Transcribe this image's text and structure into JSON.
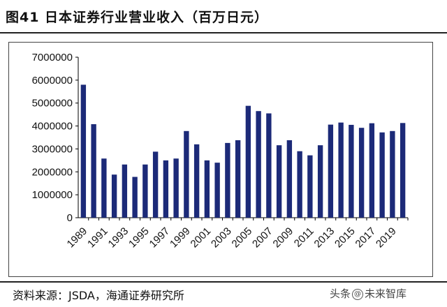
{
  "header": {
    "title": "图41 日本证券行业营业收入（百万日元）"
  },
  "footer": {
    "source": "资料来源：JSDA，海通证券研究所",
    "watermark_left": "头条",
    "watermark_icon": "@",
    "watermark_right": "未来智库"
  },
  "chart_data": {
    "type": "bar",
    "title": "",
    "xlabel": "",
    "ylabel": "",
    "ylim": [
      0,
      7000000
    ],
    "yticks": [
      "0",
      "1000000",
      "2000000",
      "3000000",
      "4000000",
      "5000000",
      "6000000",
      "7000000"
    ],
    "bar_color": "#1c2a78",
    "categories": [
      "1989",
      "1990",
      "1991",
      "1992",
      "1993",
      "1994",
      "1995",
      "1996",
      "1997",
      "1998",
      "1999",
      "2000",
      "2001",
      "2002",
      "2003",
      "2004",
      "2005",
      "2006",
      "2007",
      "2008",
      "2009",
      "2010",
      "2011",
      "2012",
      "2013",
      "2014",
      "2015",
      "2016",
      "2017",
      "2018",
      "2019",
      "2020"
    ],
    "xtick_labels": [
      "1989",
      "",
      "1991",
      "",
      "1993",
      "",
      "1995",
      "",
      "1997",
      "",
      "1999",
      "",
      "2001",
      "",
      "2003",
      "",
      "2005",
      "",
      "2007",
      "",
      "2009",
      "",
      "2011",
      "",
      "2013",
      "",
      "2015",
      "",
      "2017",
      "",
      "2019",
      ""
    ],
    "values": [
      5800000,
      4080000,
      2580000,
      1880000,
      2320000,
      1780000,
      2320000,
      2880000,
      2500000,
      2580000,
      3780000,
      3200000,
      2500000,
      2400000,
      3260000,
      3380000,
      4880000,
      4650000,
      4550000,
      3160000,
      3380000,
      2900000,
      2720000,
      3160000,
      4060000,
      4150000,
      4050000,
      3920000,
      4120000,
      3720000,
      3780000,
      4130000
    ]
  }
}
